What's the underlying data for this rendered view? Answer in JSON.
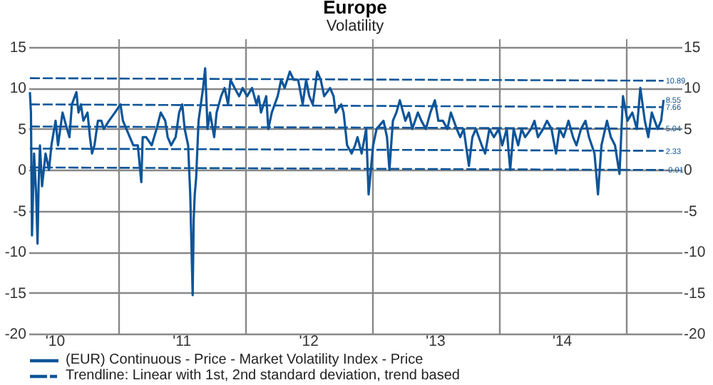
{
  "chart_data": {
    "type": "line",
    "title": "Europe",
    "subtitle": "Volatility",
    "xlim": [
      "2010-04-17",
      "2015-06-12"
    ],
    "ylim": [
      -20,
      15
    ],
    "yticks": [
      -20,
      -15,
      -10,
      -5,
      0,
      5,
      10,
      15
    ],
    "y2lim": [
      -20,
      15
    ],
    "y2ticks": [
      -20,
      -15,
      -10,
      -5,
      0,
      5,
      10,
      15
    ],
    "xticks": [
      {
        "value": "2010-07-01",
        "label": "'10"
      },
      {
        "value": "2011-01-01",
        "label": null
      },
      {
        "value": "2011-07-01",
        "label": "'11"
      },
      {
        "value": "2012-01-01",
        "label": null
      },
      {
        "value": "2012-07-01",
        "label": "'12"
      },
      {
        "value": "2013-01-01",
        "label": null
      },
      {
        "value": "2013-07-01",
        "label": "'13"
      },
      {
        "value": "2014-01-01",
        "label": null
      },
      {
        "value": "2014-07-01",
        "label": "'14"
      },
      {
        "value": "2015-01-01",
        "label": null
      }
    ],
    "grid": true,
    "legend": "bottom",
    "series": [
      {
        "name": "(EUR) Continuous - Price - Market Volatility Index - Price",
        "color": "#0d5599",
        "line_style": "solid",
        "x": [
          "2010-04-21",
          "2010-04-24",
          "2010-04-27",
          "2010-05-03",
          "2010-05-09",
          "2010-05-13",
          "2010-05-16",
          "2010-05-20",
          "2010-05-26",
          "2010-06-05",
          "2010-06-15",
          "2010-06-22",
          "2010-07-04",
          "2010-07-11",
          "2010-07-24",
          "2010-08-06",
          "2010-08-13",
          "2010-08-20",
          "2010-09-02",
          "2010-09-08",
          "2010-09-15",
          "2010-09-22",
          "2010-10-04",
          "2010-10-11",
          "2010-10-17",
          "2010-10-24",
          "2010-11-03",
          "2010-11-13",
          "2010-11-20",
          "2010-12-05",
          "2010-12-22",
          "2011-01-07",
          "2011-01-14",
          "2011-01-24",
          "2011-02-03",
          "2011-02-13",
          "2011-02-26",
          "2011-03-08",
          "2011-03-12",
          "2011-03-22",
          "2011-04-07",
          "2011-04-21",
          "2011-05-03",
          "2011-05-16",
          "2011-05-23",
          "2011-06-02",
          "2011-06-15",
          "2011-06-25",
          "2011-07-04",
          "2011-07-11",
          "2011-07-21",
          "2011-07-27",
          "2011-08-03",
          "2011-08-06",
          "2011-08-09",
          "2011-08-13",
          "2011-08-20",
          "2011-09-02",
          "2011-09-08",
          "2011-09-15",
          "2011-09-22",
          "2011-10-04",
          "2011-10-11",
          "2011-10-24",
          "2011-11-03",
          "2011-11-13",
          "2011-11-20",
          "2011-12-02",
          "2011-12-15",
          "2011-12-25",
          "2012-01-07",
          "2012-01-21",
          "2012-02-03",
          "2012-02-09",
          "2012-02-16",
          "2012-03-02",
          "2012-03-08",
          "2012-03-18",
          "2012-04-04",
          "2012-04-14",
          "2012-04-24",
          "2012-05-09",
          "2012-05-20",
          "2012-06-02",
          "2012-06-15",
          "2012-06-25",
          "2012-07-04",
          "2012-07-14",
          "2012-07-27",
          "2012-08-06",
          "2012-08-16",
          "2012-09-02",
          "2012-09-12",
          "2012-09-18",
          "2012-10-04",
          "2012-10-11",
          "2012-10-21",
          "2012-11-03",
          "2012-11-13",
          "2012-11-20",
          "2012-12-02",
          "2012-12-15",
          "2012-12-22",
          "2013-01-04",
          "2013-01-14",
          "2013-02-03",
          "2013-02-13",
          "2013-02-20",
          "2013-03-02",
          "2013-03-12",
          "2013-03-22",
          "2013-04-07",
          "2013-04-17",
          "2013-04-27",
          "2013-05-13",
          "2013-05-23",
          "2013-06-05",
          "2013-06-18",
          "2013-07-01",
          "2013-07-11",
          "2013-07-24",
          "2013-08-06",
          "2013-08-16",
          "2013-09-02",
          "2013-09-12",
          "2013-09-22",
          "2013-10-07",
          "2013-10-17",
          "2013-10-27",
          "2013-11-13",
          "2013-11-23",
          "2013-12-05",
          "2013-12-18",
          "2014-01-01",
          "2014-01-11",
          "2014-01-24",
          "2014-02-03",
          "2014-02-13",
          "2014-02-26",
          "2014-03-08",
          "2014-03-18",
          "2014-04-04",
          "2014-04-14",
          "2014-04-24",
          "2014-05-09",
          "2014-05-20",
          "2014-06-02",
          "2014-06-15",
          "2014-06-25",
          "2014-07-07",
          "2014-07-21",
          "2014-08-03",
          "2014-08-13",
          "2014-08-26",
          "2014-09-08",
          "2014-09-18",
          "2014-10-04",
          "2014-10-14",
          "2014-10-24",
          "2014-11-09",
          "2014-11-20",
          "2014-12-02",
          "2014-12-15",
          "2014-12-25",
          "2015-01-07",
          "2015-01-21",
          "2015-02-03",
          "2015-02-13",
          "2015-02-26",
          "2015-03-08",
          "2015-03-18",
          "2015-04-04",
          "2015-04-14",
          "2015-04-21"
        ],
        "values": [
          9.5,
          7,
          -8,
          2,
          -3,
          -9,
          -2,
          3,
          -2,
          2,
          0,
          3,
          6,
          3,
          7,
          5,
          4,
          8,
          9.5,
          7,
          8,
          6,
          7,
          4,
          2,
          3,
          6,
          6,
          5,
          6,
          7,
          8,
          6,
          5,
          4,
          3,
          3,
          -1.5,
          4,
          4,
          3,
          5,
          7,
          6,
          4,
          3,
          4,
          7,
          8,
          5,
          3,
          -3,
          -15.3,
          -6,
          -3,
          -1,
          6,
          10,
          12.4,
          5,
          7,
          4,
          7,
          9,
          10,
          8,
          11,
          10,
          9,
          10,
          9,
          10,
          8,
          9,
          7,
          9,
          5,
          7,
          9,
          11,
          10,
          12,
          11,
          11,
          8,
          11,
          9,
          8,
          12,
          11,
          9,
          10,
          9,
          7,
          8,
          7,
          3,
          2,
          3,
          4,
          2,
          5,
          -3,
          3,
          5,
          6,
          4,
          0,
          6,
          7,
          8.5,
          6,
          7,
          5,
          7,
          6,
          5,
          7,
          8.5,
          6,
          6,
          5,
          7,
          5,
          4,
          5,
          0.5,
          4,
          5,
          3,
          2,
          5,
          4,
          5,
          3,
          5,
          0,
          5,
          3,
          5,
          4,
          5,
          6,
          4,
          5,
          6,
          5,
          2,
          5,
          4,
          6,
          4,
          3,
          5,
          6,
          4,
          2,
          -3,
          3,
          6,
          4,
          3,
          -0.5,
          9,
          6,
          7,
          5,
          10,
          6,
          4,
          7,
          5,
          6,
          8.55
        ]
      },
      {
        "name": "Trendline: Linear with 1st, 2nd standard deviation, trend based",
        "color": "#0d5599",
        "line_style": "dashed",
        "x": [
          "2010-04-21",
          "2015-04-21"
        ],
        "values": [
          11.2,
          10.89
        ]
      },
      {
        "color": "#0d5599",
        "line_style": "dashed",
        "x": [
          "2010-04-21",
          "2015-04-21"
        ],
        "values": [
          8.0,
          7.66
        ]
      },
      {
        "color": "#0d5599",
        "line_style": "dashed",
        "x": [
          "2010-04-21",
          "2015-04-21"
        ],
        "values": [
          5.3,
          5.04
        ]
      },
      {
        "color": "#0d5599",
        "line_style": "dashed",
        "x": [
          "2010-04-21",
          "2015-04-21"
        ],
        "values": [
          2.6,
          2.33
        ]
      },
      {
        "color": "#0d5599",
        "line_style": "dashed",
        "x": [
          "2010-04-21",
          "2015-04-21"
        ],
        "values": [
          0.3,
          -0.01
        ]
      }
    ],
    "annotations": [
      {
        "text": "10.89",
        "x": "2015-04-21",
        "y": 10.89
      },
      {
        "text": "8.55",
        "x": "2015-04-21",
        "y": 8.55
      },
      {
        "text": "7.66",
        "x": "2015-04-21",
        "y": 7.66
      },
      {
        "text": "5.04",
        "x": "2015-04-21",
        "y": 5.04
      },
      {
        "text": "2.33",
        "x": "2015-04-21",
        "y": 2.33
      },
      {
        "text": "-0.01",
        "x": "2015-04-21",
        "y": -0.01
      }
    ]
  }
}
